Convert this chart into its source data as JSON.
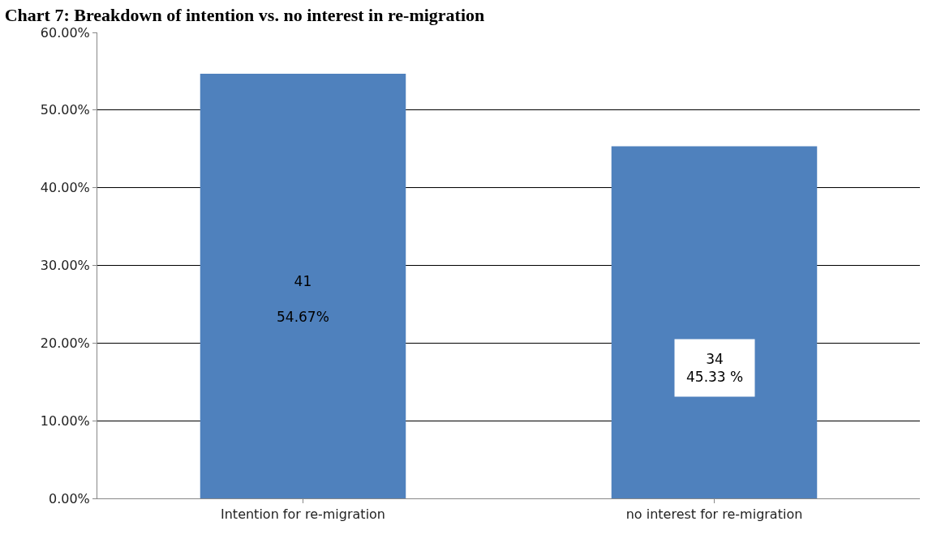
{
  "chart_data": {
    "type": "bar",
    "title": "Chart 7: Breakdown of intention vs. no interest in re-migration",
    "categories": [
      "Intention for re-migration",
      "no interest for re-migration"
    ],
    "values": [
      54.67,
      45.33
    ],
    "value_labels": [
      "41\n54.67%",
      "34\n45.33 %"
    ],
    "color": "#4f81bd",
    "ylim": [
      0,
      60
    ],
    "yticks": [
      {
        "value": 0,
        "label": "0.00%"
      },
      {
        "value": 10,
        "label": "10.00%"
      },
      {
        "value": 20,
        "label": "20.00%"
      },
      {
        "value": 30,
        "label": "30.00%"
      },
      {
        "value": 40,
        "label": "40.00%"
      },
      {
        "value": 50,
        "label": "50.00%"
      },
      {
        "value": 60,
        "label": "60.00%"
      }
    ],
    "grid": "y"
  }
}
